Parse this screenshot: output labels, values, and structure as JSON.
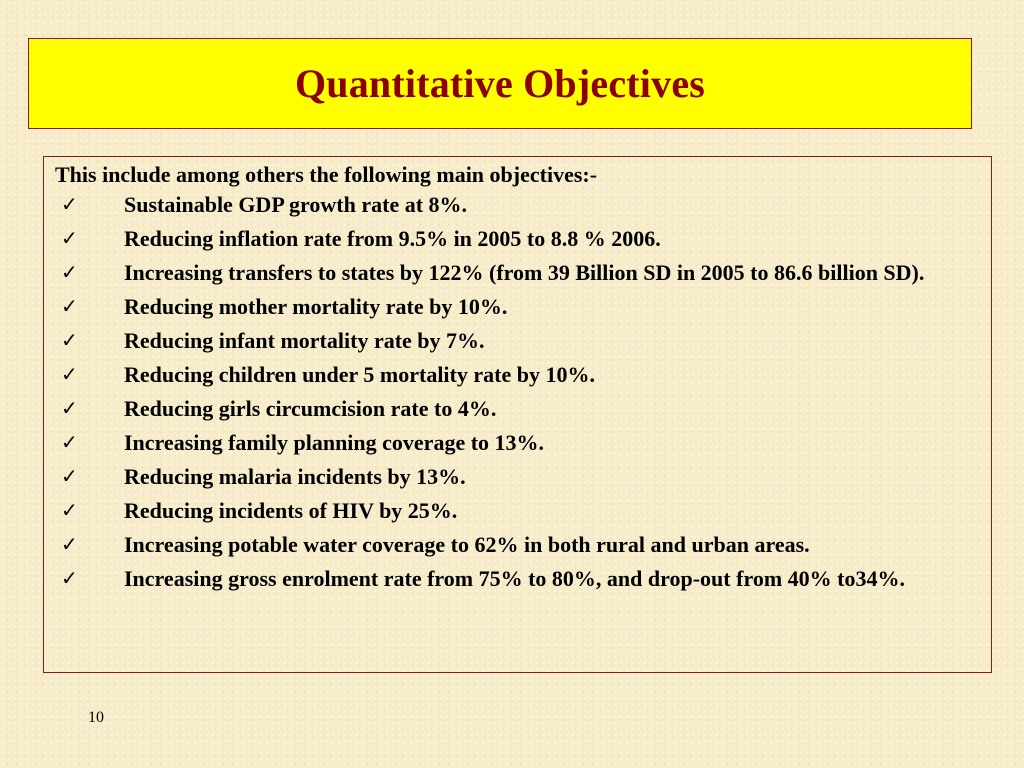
{
  "slide": {
    "title": "Quantitative Objectives",
    "intro": "This include among others the following main objectives:-",
    "bullet_icon": "checkmark-icon",
    "check_glyph": "✓",
    "objectives": [
      "Sustainable GDP growth rate at 8%.",
      "Reducing inflation rate from 9.5% in 2005 to 8.8 % 2006.",
      "Increasing transfers to states by 122% (from 39 Billion SD in 2005 to 86.6 billion SD).",
      "Reducing mother mortality rate by 10%.",
      "Reducing infant mortality rate by 7%.",
      "Reducing children under 5 mortality rate by 10%.",
      "Reducing girls circumcision rate to 4%.",
      "Increasing family planning coverage to 13%.",
      "Reducing malaria incidents by 13%.",
      "Reducing incidents of HIV by 25%.",
      "Increasing potable water coverage to 62% in both rural and urban areas.",
      "Increasing gross enrolment rate from 75% to 80%, and drop-out from 40% to34%."
    ],
    "page_number": "10"
  },
  "colors": {
    "background": "#f7ecca",
    "title_box": "#ffff00",
    "title_text": "#8b0000",
    "border": "#8b1a1a",
    "body_text": "#000000"
  }
}
